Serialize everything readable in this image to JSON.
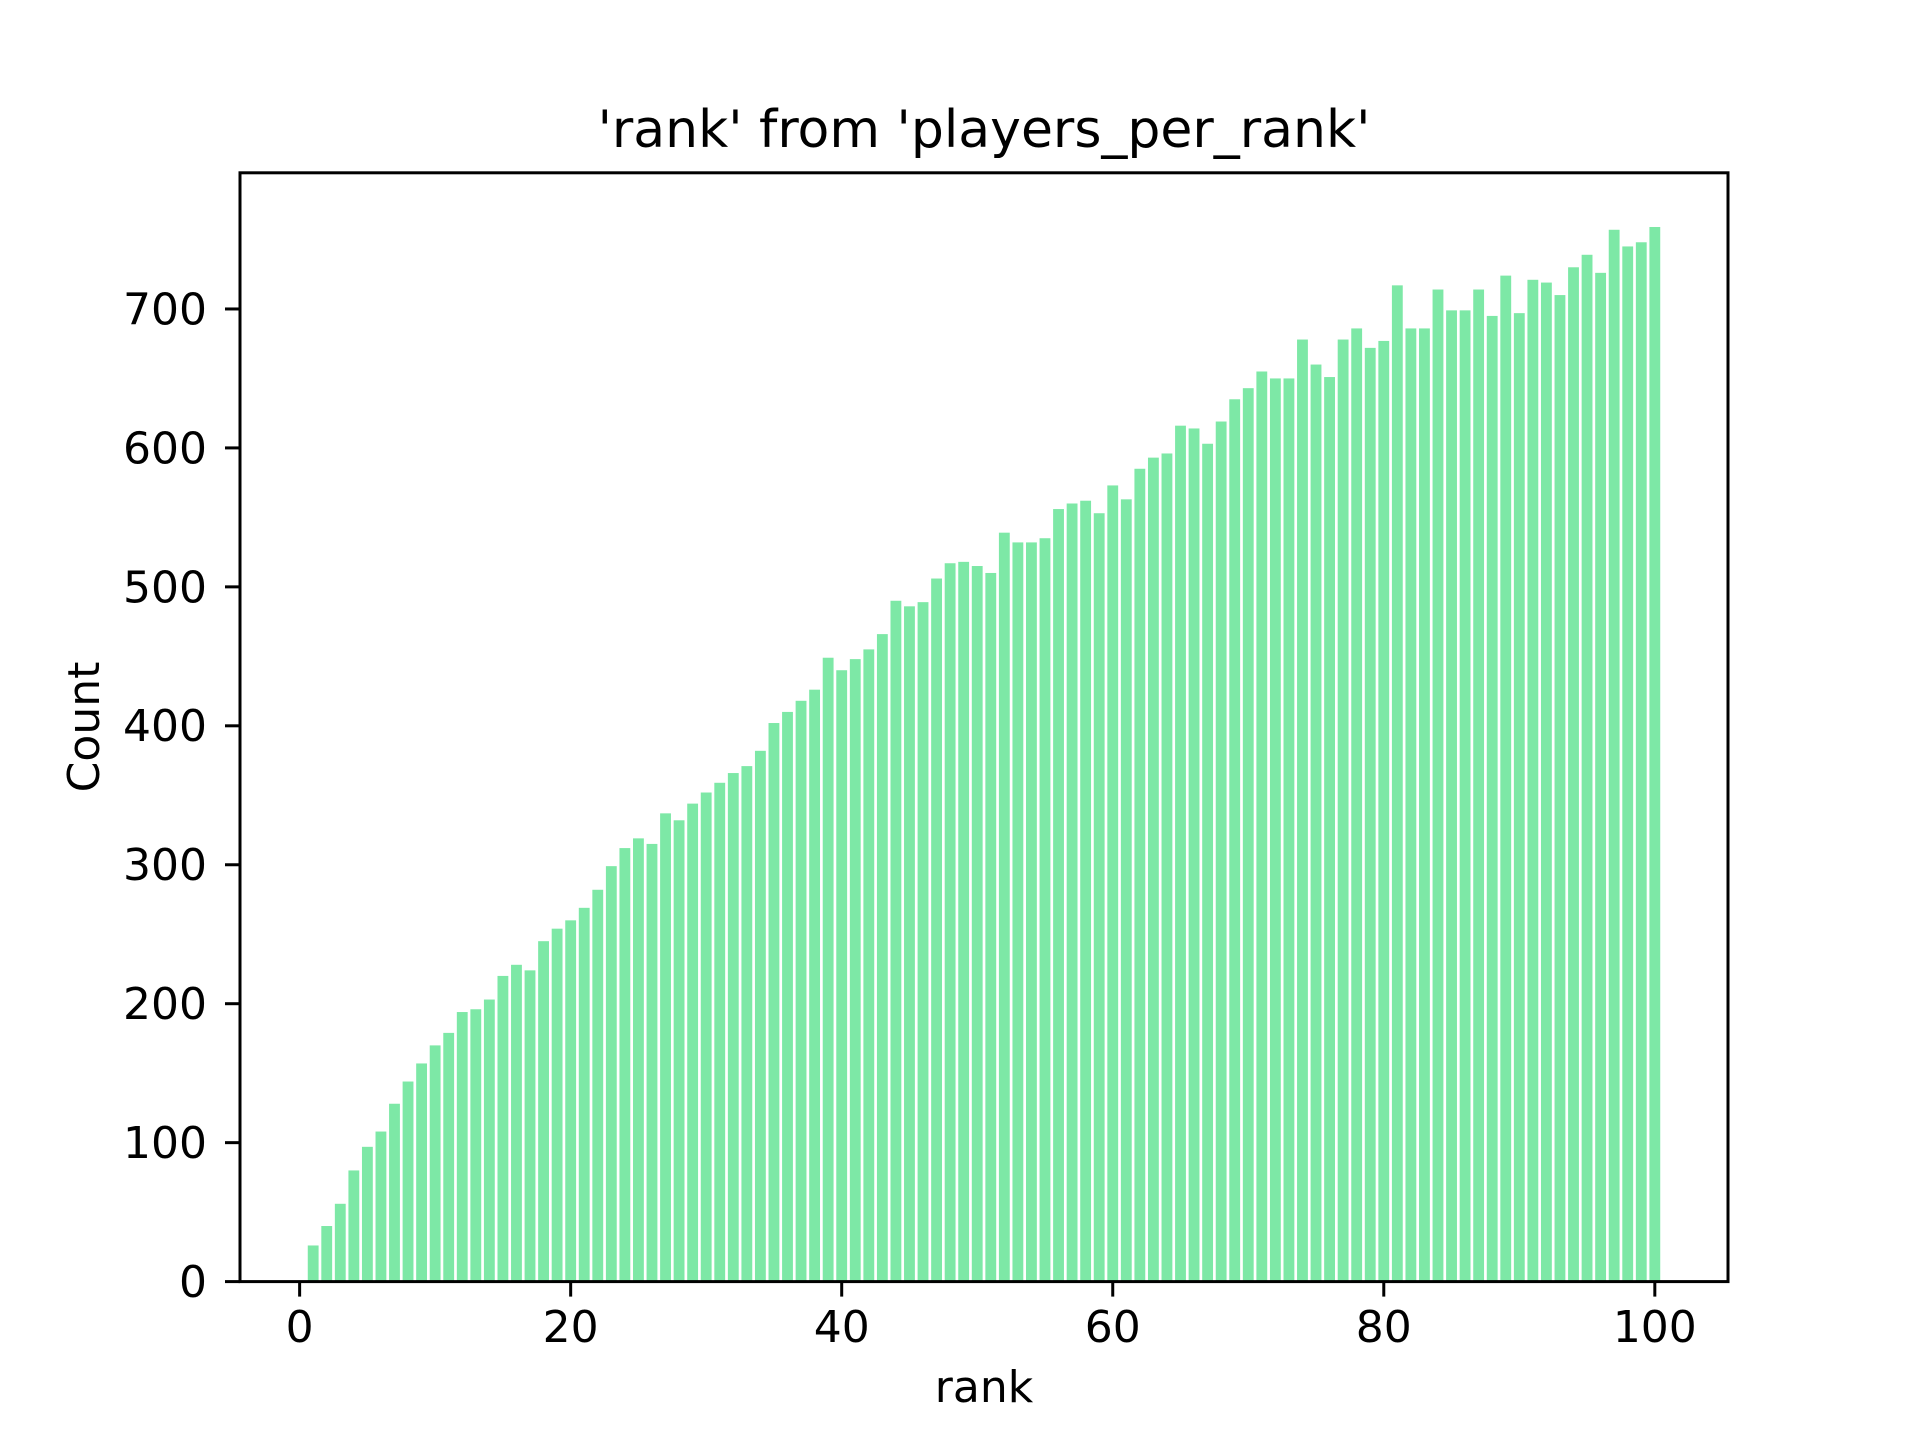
{
  "figure": {
    "background_color": "#ffffff"
  },
  "chart_data": {
    "type": "bar",
    "title": "'rank' from 'players_per_rank'",
    "xlabel": "rank",
    "ylabel": "Count",
    "bar_color": "#7DE8A6",
    "axis_color": "#000000",
    "text_color": "#000000",
    "grid": false,
    "legend": false,
    "bar_width": 0.8,
    "xlim": [
      -4.4,
      105.4
    ],
    "ylim": [
      0,
      798
    ],
    "xticks": [
      0,
      20,
      40,
      60,
      80,
      100
    ],
    "yticks": [
      0,
      100,
      200,
      300,
      400,
      500,
      600,
      700
    ],
    "x": [
      1,
      2,
      3,
      4,
      5,
      6,
      7,
      8,
      9,
      10,
      11,
      12,
      13,
      14,
      15,
      16,
      17,
      18,
      19,
      20,
      21,
      22,
      23,
      24,
      25,
      26,
      27,
      28,
      29,
      30,
      31,
      32,
      33,
      34,
      35,
      36,
      37,
      38,
      39,
      40,
      41,
      42,
      43,
      44,
      45,
      46,
      47,
      48,
      49,
      50,
      51,
      52,
      53,
      54,
      55,
      56,
      57,
      58,
      59,
      60,
      61,
      62,
      63,
      64,
      65,
      66,
      67,
      68,
      69,
      70,
      71,
      72,
      73,
      74,
      75,
      76,
      77,
      78,
      79,
      80,
      81,
      82,
      83,
      84,
      85,
      86,
      87,
      88,
      89,
      90,
      91,
      92,
      93,
      94,
      95,
      96,
      97,
      98,
      99,
      100
    ],
    "values": [
      26,
      40,
      56,
      80,
      97,
      108,
      128,
      144,
      157,
      170,
      179,
      194,
      196,
      203,
      220,
      228,
      224,
      245,
      254,
      260,
      269,
      282,
      299,
      312,
      319,
      315,
      337,
      332,
      344,
      352,
      359,
      366,
      371,
      382,
      402,
      410,
      418,
      426,
      449,
      440,
      448,
      455,
      466,
      490,
      486,
      489,
      506,
      517,
      518,
      515,
      510,
      539,
      532,
      532,
      535,
      556,
      560,
      562,
      553,
      573,
      563,
      585,
      593,
      596,
      616,
      614,
      603,
      619,
      635,
      643,
      655,
      650,
      650,
      678,
      660,
      651,
      678,
      686,
      672,
      677,
      717,
      686,
      686,
      714,
      699,
      699,
      714,
      695,
      724,
      697,
      721,
      719,
      710,
      730,
      739,
      726,
      757,
      745,
      748,
      759
    ]
  }
}
